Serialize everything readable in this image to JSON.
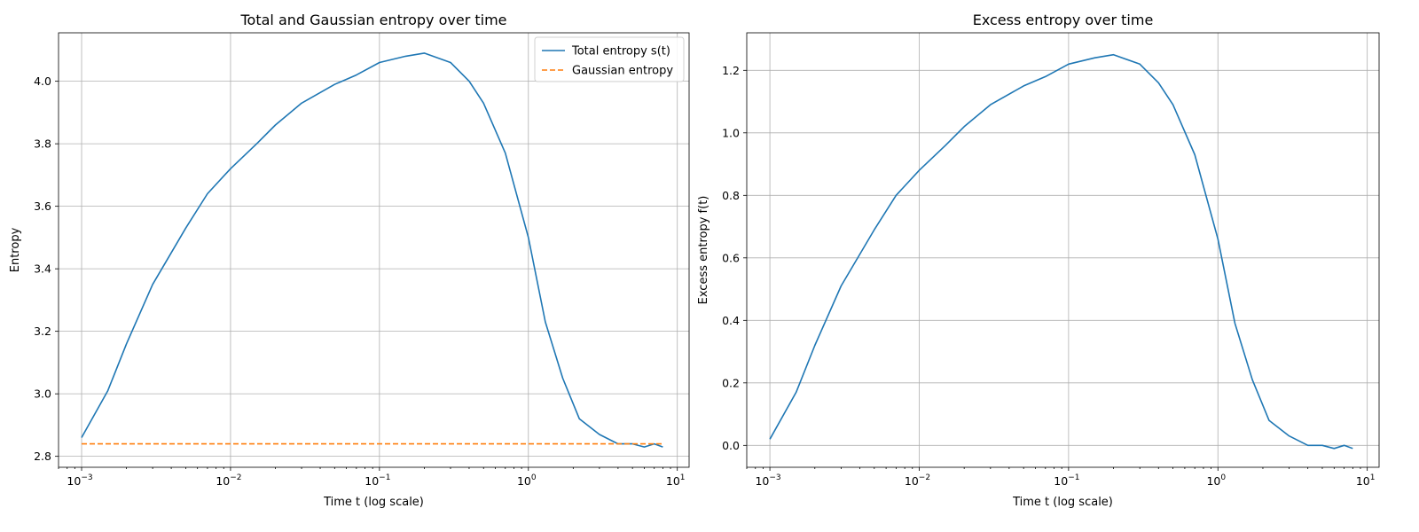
{
  "chart_data": [
    {
      "type": "line",
      "title": "Total and Gaussian entropy over time",
      "xlabel": "Time t (log scale)",
      "ylabel": "Entropy",
      "xscale": "log",
      "xlim": [
        0.0007,
        12
      ],
      "ylim": [
        2.765,
        4.155
      ],
      "x_ticks": [
        {
          "value": 0.001,
          "base": "10",
          "exp": "−3"
        },
        {
          "value": 0.01,
          "base": "10",
          "exp": "−2"
        },
        {
          "value": 0.1,
          "base": "10",
          "exp": "−1"
        },
        {
          "value": 1,
          "base": "10",
          "exp": "0"
        },
        {
          "value": 10,
          "base": "10",
          "exp": "1"
        }
      ],
      "y_ticks": [
        {
          "value": 2.8,
          "label": "2.8"
        },
        {
          "value": 3.0,
          "label": "3.0"
        },
        {
          "value": 3.2,
          "label": "3.2"
        },
        {
          "value": 3.4,
          "label": "3.4"
        },
        {
          "value": 3.6,
          "label": "3.6"
        },
        {
          "value": 3.8,
          "label": "3.8"
        },
        {
          "value": 4.0,
          "label": "4.0"
        }
      ],
      "grid": true,
      "legend": {
        "placement": "upper right",
        "entries": [
          "Total entropy s(t)",
          "Gaussian entropy"
        ]
      },
      "series": [
        {
          "name": "Total entropy s(t)",
          "color": "#1f77b4",
          "style": "solid",
          "x": [
            0.001,
            0.0015,
            0.002,
            0.003,
            0.005,
            0.007,
            0.01,
            0.015,
            0.02,
            0.03,
            0.05,
            0.07,
            0.1,
            0.15,
            0.2,
            0.3,
            0.4,
            0.5,
            0.7,
            1.0,
            1.3,
            1.7,
            2.2,
            3.0,
            4.0,
            5.0,
            6.0,
            7.0,
            8.0
          ],
          "y": [
            2.86,
            3.01,
            3.16,
            3.35,
            3.53,
            3.64,
            3.72,
            3.8,
            3.86,
            3.93,
            3.99,
            4.02,
            4.06,
            4.08,
            4.09,
            4.06,
            4.0,
            3.93,
            3.77,
            3.5,
            3.23,
            3.05,
            2.92,
            2.87,
            2.84,
            2.84,
            2.83,
            2.84,
            2.83
          ]
        },
        {
          "name": "Gaussian entropy",
          "color": "#ff7f0e",
          "style": "dashed",
          "x": [
            0.001,
            8.0
          ],
          "y": [
            2.84,
            2.84
          ]
        }
      ]
    },
    {
      "type": "line",
      "title": "Excess entropy over time",
      "xlabel": "Time t (log scale)",
      "ylabel": "Excess entropy f(t)",
      "xscale": "log",
      "xlim": [
        0.0007,
        12
      ],
      "ylim": [
        -0.07,
        1.32
      ],
      "x_ticks": [
        {
          "value": 0.001,
          "base": "10",
          "exp": "−3"
        },
        {
          "value": 0.01,
          "base": "10",
          "exp": "−2"
        },
        {
          "value": 0.1,
          "base": "10",
          "exp": "−1"
        },
        {
          "value": 1,
          "base": "10",
          "exp": "0"
        },
        {
          "value": 10,
          "base": "10",
          "exp": "1"
        }
      ],
      "y_ticks": [
        {
          "value": 0.0,
          "label": "0.0"
        },
        {
          "value": 0.2,
          "label": "0.2"
        },
        {
          "value": 0.4,
          "label": "0.4"
        },
        {
          "value": 0.6,
          "label": "0.6"
        },
        {
          "value": 0.8,
          "label": "0.8"
        },
        {
          "value": 1.0,
          "label": "1.0"
        },
        {
          "value": 1.2,
          "label": "1.2"
        }
      ],
      "grid": true,
      "series": [
        {
          "color": "#1f77b4",
          "style": "solid",
          "x": [
            0.001,
            0.0015,
            0.002,
            0.003,
            0.005,
            0.007,
            0.01,
            0.015,
            0.02,
            0.03,
            0.05,
            0.07,
            0.1,
            0.15,
            0.2,
            0.3,
            0.4,
            0.5,
            0.7,
            1.0,
            1.3,
            1.7,
            2.2,
            3.0,
            4.0,
            5.0,
            6.0,
            7.0,
            8.0
          ],
          "y": [
            0.02,
            0.17,
            0.32,
            0.51,
            0.69,
            0.8,
            0.88,
            0.96,
            1.02,
            1.09,
            1.15,
            1.18,
            1.22,
            1.24,
            1.25,
            1.22,
            1.16,
            1.09,
            0.93,
            0.66,
            0.39,
            0.21,
            0.08,
            0.03,
            0.0,
            0.0,
            -0.01,
            0.0,
            -0.01
          ]
        }
      ]
    }
  ]
}
